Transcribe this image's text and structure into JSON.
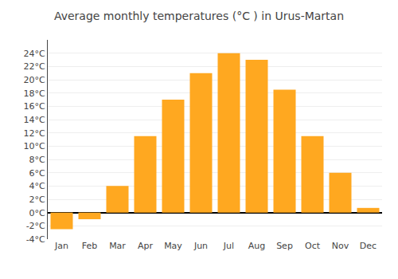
{
  "chart_data": {
    "type": "bar",
    "title": "Average monthly temperatures (°C ) in Urus-Martan",
    "categories": [
      "Jan",
      "Feb",
      "Mar",
      "Apr",
      "May",
      "Jun",
      "Jul",
      "Aug",
      "Sep",
      "Oct",
      "Nov",
      "Dec"
    ],
    "values": [
      -2.5,
      -1.0,
      4.0,
      11.5,
      17.0,
      21.0,
      24.0,
      23.0,
      18.5,
      11.5,
      6.0,
      0.7
    ],
    "color": "#FFA820",
    "ylim": [
      -4,
      26
    ],
    "yticks": [
      {
        "value": -4,
        "label": "-4°C"
      },
      {
        "value": -2,
        "label": "-2°C"
      },
      {
        "value": 0,
        "label": "0°C"
      },
      {
        "value": 2,
        "label": "2°C"
      },
      {
        "value": 4,
        "label": "4°C"
      },
      {
        "value": 6,
        "label": "6°C"
      },
      {
        "value": 8,
        "label": "8°C"
      },
      {
        "value": 10,
        "label": "10°C"
      },
      {
        "value": 12,
        "label": "12°C"
      },
      {
        "value": 14,
        "label": "14°C"
      },
      {
        "value": 16,
        "label": "16°C"
      },
      {
        "value": 18,
        "label": "18°C"
      },
      {
        "value": 20,
        "label": "20°C"
      },
      {
        "value": 22,
        "label": "22°C"
      },
      {
        "value": 24,
        "label": "24°C"
      }
    ],
    "grid": true
  }
}
